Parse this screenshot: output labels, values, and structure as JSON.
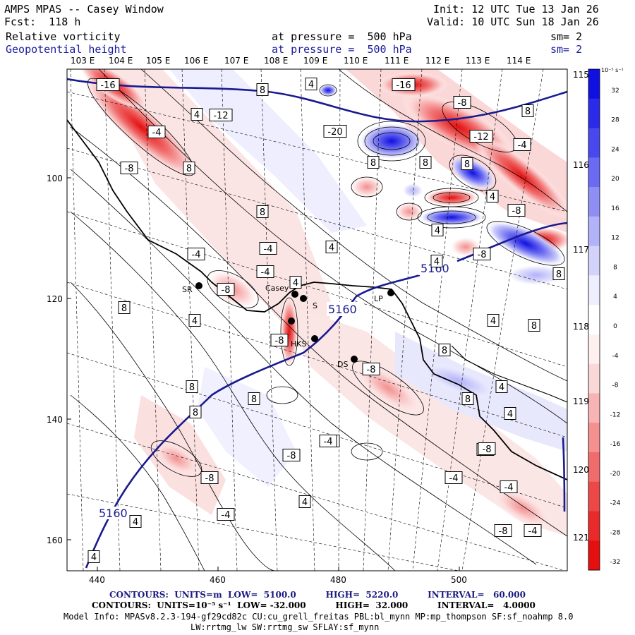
{
  "header": {
    "title": "AMPS MPAS -- Casey Window",
    "forecast": "Fcst:  118 h",
    "init": "Init: 12 UTC Tue 13 Jan 26",
    "valid": "Valid: 10 UTC Sun 18 Jan 26",
    "field1_name": "Relative vorticity",
    "field1_level": "at pressure =  500 hPa",
    "field1_sm": "sm= 2",
    "field2_name": "Geopotential height",
    "field2_level": "at pressure =  500 hPa",
    "field2_sm": "sm= 2"
  },
  "map": {
    "top_lon_labels": [
      "103 E",
      "104 E",
      "105 E",
      "106 E",
      "107 E",
      "108 E",
      "109 E",
      "110 E",
      "111 E",
      "112 E",
      "113 E",
      "114 E"
    ],
    "right_lat_labels": [
      "115 E",
      "116 E",
      "117 E",
      "118 E",
      "119 E",
      "120 E",
      "121 E"
    ],
    "x_ticks": [
      "440",
      "460",
      "480",
      "500"
    ],
    "y_ticks": [
      "100",
      "120",
      "140",
      "160"
    ],
    "stations": [
      {
        "name": "SR"
      },
      {
        "name": "Casey"
      },
      {
        "name": "S"
      },
      {
        "name": "LP"
      },
      {
        "name": "HKS"
      },
      {
        "name": "DS"
      }
    ],
    "height_labels": [
      "5160",
      "5160",
      "5160"
    ],
    "vorticity_labels": [
      "-16",
      "8",
      "4",
      "-16",
      "-8",
      "8",
      "4",
      "-12",
      "-4",
      "-20",
      "-12",
      "-4",
      "-8",
      "8",
      "8",
      "8",
      "8",
      "-8",
      "4",
      "8",
      "-8",
      "4",
      "4",
      "8",
      "-4",
      "-4",
      "-4",
      "-8",
      "8",
      "4",
      "4",
      "4",
      "8",
      "-8",
      "-8",
      "8",
      "4",
      "8",
      "8",
      "8",
      "4",
      "8",
      "-8",
      "4",
      "4",
      "-4",
      "-4",
      "-8",
      "-4",
      "-8",
      "-4",
      "4",
      "-4",
      "-8",
      "4",
      "4",
      "4",
      "-4",
      "-8",
      "-4"
    ]
  },
  "colorbar": {
    "unit": "10⁻⁵ s⁻¹",
    "ticks": [
      "32",
      "28",
      "24",
      "20",
      "16",
      "12",
      "8",
      "4",
      "0",
      "-4",
      "-8",
      "-12",
      "-16",
      "-20",
      "-24",
      "-28",
      "-32"
    ],
    "colors": [
      "#1010e0",
      "#2a2ae8",
      "#4848ee",
      "#6a6af2",
      "#8e8ef5",
      "#b2b2f8",
      "#d2d2fb",
      "#eeeeff",
      "#ffffff",
      "#fff0f0",
      "#fbd8d8",
      "#f8b4b4",
      "#f49090",
      "#f06c6c",
      "#ec4848",
      "#e82a2a",
      "#e41010"
    ]
  },
  "footer": {
    "contours1": "CONTOURS:  UNITS=m  LOW=  5100.0          HIGH=  5220.0          INTERVAL=   60.000",
    "contours2": "CONTOURS:  UNITS=10⁻⁵ s⁻¹  LOW= -32.000          HIGH=  32.000          INTERVAL=   4.0000",
    "model1": "Model Info: MPASv8.2.3-194-gf29cd82c CU:cu_grell_freitas PBL:bl_mynn MP:mp_thompson SF:sf_noahmp 8.0",
    "model2": "LW:rrtmg_lw SW:rrtmg_sw SFLAY:sf_mynn"
  }
}
